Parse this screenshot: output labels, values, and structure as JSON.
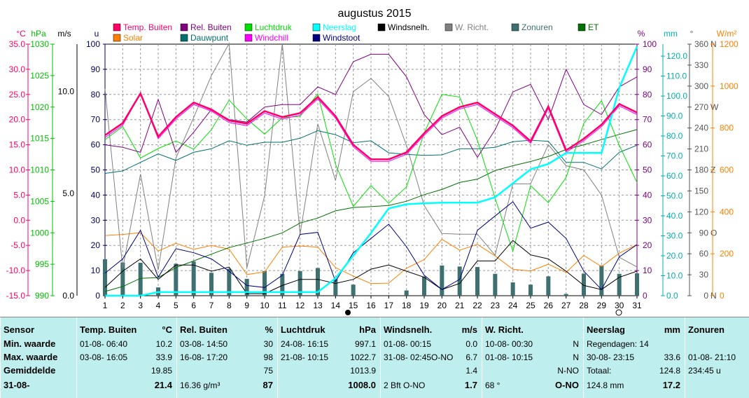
{
  "title": "augustus 2015",
  "units": {
    "celsius": "°C",
    "hpa": "hPa",
    "ms": "m/s",
    "uur": "u",
    "percent": "%",
    "mm": "mm",
    "deg": "°",
    "wm2": "W/m²"
  },
  "legend": [
    {
      "label": "Temp. Buiten",
      "color": "#ff0066"
    },
    {
      "label": "Rel. Buiten",
      "color": "#800080"
    },
    {
      "label": "Luchtdruk",
      "color": "#00e000"
    },
    {
      "label": "Neerslag",
      "color": "#00ffff"
    },
    {
      "label": "Windsnelh.",
      "color": "#000000"
    },
    {
      "label": "W. Richt.",
      "color": "#808080"
    },
    {
      "label": "Zonuren",
      "color": "#3f7070"
    },
    {
      "label": "ET",
      "color": "#007000"
    },
    {
      "label": "Solar",
      "color": "#ff8000"
    },
    {
      "label": "Dauwpunt",
      "color": "#007070"
    },
    {
      "label": "Windchill",
      "color": "#ff00ff"
    },
    {
      "label": "Windstoot",
      "color": "#000080"
    }
  ],
  "axis_labels": {
    "celsius": [
      "35.0",
      "30.0",
      "25.0",
      "20.0",
      "15.0",
      "10.0",
      "5.0",
      "0.0",
      "-5.0",
      "-10.0",
      "-15.0"
    ],
    "hpa": [
      "1030",
      "1025",
      "1020",
      "1015",
      "1010",
      "1005",
      "1000",
      "995",
      "990"
    ],
    "ms": [
      "10.0",
      "5.0",
      "0.0"
    ],
    "uur": [
      "100",
      "90",
      "80",
      "70",
      "60",
      "50",
      "40",
      "30",
      "20",
      "10",
      "0"
    ],
    "percent": [
      "100",
      "90",
      "80",
      "70",
      "60",
      "50",
      "40",
      "30",
      "20",
      "10",
      "0"
    ],
    "mm": [
      "120.0",
      "110.0",
      "100.0",
      "90.0",
      "80.0",
      "70.0",
      "60.0",
      "50.0",
      "40.0",
      "30.0",
      "20.0",
      "10.0",
      "0.0"
    ],
    "deg": [
      "360",
      "330",
      "300",
      "270",
      "240",
      "210",
      "180",
      "150",
      "120",
      "90",
      "60",
      "30",
      "0"
    ],
    "compass": [
      "N",
      "W",
      "Z",
      "O",
      "N"
    ],
    "wm2": [
      "1200",
      "1000",
      "800",
      "600",
      "400",
      "200",
      "0"
    ]
  },
  "chart_data": {
    "type": "line",
    "x": [
      1,
      2,
      3,
      4,
      5,
      6,
      7,
      8,
      9,
      10,
      11,
      12,
      13,
      14,
      15,
      16,
      17,
      18,
      19,
      20,
      21,
      22,
      23,
      24,
      25,
      26,
      27,
      28,
      29,
      30,
      31
    ],
    "series": [
      {
        "name": "Temp. Buiten",
        "axis": "celsius",
        "color": "#ff0066",
        "values": [
          16.9,
          19.3,
          25.2,
          16.6,
          20.5,
          23.4,
          22,
          19.8,
          19.2,
          21.7,
          20.5,
          21.3,
          24.5,
          20.7,
          15,
          12.1,
          12.1,
          13.5,
          17.3,
          20.7,
          22.5,
          23.4,
          21.1,
          18.8,
          15.7,
          22.6,
          13.9,
          16.2,
          19,
          23.1,
          21.4
        ]
      },
      {
        "name": "Rel. Buiten",
        "axis": "percent",
        "color": "#800080",
        "values": [
          60,
          59,
          57,
          78,
          57,
          65,
          74,
          70,
          69,
          75,
          76,
          76,
          83,
          80,
          93,
          96,
          96,
          87,
          72,
          64,
          67,
          55,
          66,
          81,
          84,
          70,
          90,
          76,
          72,
          83,
          87
        ]
      },
      {
        "name": "Luchtdruk",
        "axis": "hpa",
        "color": "#00e000",
        "values": [
          1014.8,
          1016.9,
          1011.9,
          1013.4,
          1014.6,
          1013.3,
          1016.4,
          1021.1,
          1018.1,
          1015.7,
          1018.3,
          1018.5,
          1022.1,
          1010.9,
          1004.2,
          1007.5,
          1004.7,
          1007.3,
          1015.9,
          1022,
          1021.6,
          1014.7,
          1005.5,
          997.1,
          1007.5,
          1004.8,
          1008.8,
          1017.4,
          1021,
          1013.9,
          1008
        ]
      },
      {
        "name": "Neerslag",
        "axis": "mm",
        "color": "#00ffff",
        "values": [
          0,
          0,
          0,
          1.8,
          1.8,
          1.8,
          1.8,
          1.8,
          1.8,
          1.8,
          1.8,
          1.8,
          1.8,
          8.7,
          20.1,
          31.4,
          43.7,
          45.8,
          46.3,
          46.6,
          46.6,
          46.6,
          49.3,
          56.3,
          63.3,
          66,
          71.5,
          71.5,
          71.5,
          104.2,
          124.8
        ]
      },
      {
        "name": "Windsnelh.",
        "axis": "ms",
        "color": "#000000",
        "values": [
          0.4,
          1.2,
          1.8,
          0.8,
          1.5,
          1.5,
          1.2,
          1.4,
          0.1,
          0.1,
          0.5,
          0.8,
          0.8,
          0.6,
          0.8,
          1.3,
          1.5,
          1.2,
          0.9,
          0.3,
          0.6,
          1.7,
          1.7,
          2.7,
          2,
          1.8,
          1.2,
          0.5,
          0.3,
          0.9,
          1.2
        ]
      },
      {
        "name": "W. Richt.",
        "axis": "deg",
        "color": "#808080",
        "values": [
          296,
          39,
          174,
          37,
          197,
          255,
          315,
          361,
          40,
          143,
          361,
          88,
          246,
          165,
          292,
          311,
          285,
          215,
          129,
          89,
          88,
          88,
          58,
          160,
          160,
          216,
          186,
          180,
          144,
          55,
          41
        ]
      },
      {
        "name": "Dauwpunt",
        "axis": "celsius",
        "color": "#007070",
        "values": [
          9.3,
          9.8,
          11.5,
          13.2,
          11.9,
          13.5,
          14.2,
          15.8,
          14.9,
          15.5,
          15.5,
          16.3,
          17.8,
          17,
          15.4,
          15.8,
          13.4,
          13.1,
          12.9,
          13,
          14.2,
          14.2,
          14.5,
          15.6,
          15.9,
          15.7,
          11.5,
          11.5,
          10.2,
          13.5,
          14.9
        ]
      },
      {
        "name": "Windchill",
        "axis": "celsius",
        "color": "#ff00ff",
        "values": [
          16.4,
          18.9,
          25.2,
          16.2,
          20.1,
          23,
          21.7,
          19.4,
          18.8,
          21.3,
          20.1,
          20.9,
          24.1,
          20.3,
          14.6,
          11.7,
          11.7,
          13.1,
          16.9,
          20.3,
          22.1,
          23,
          20.7,
          18.4,
          15.3,
          22.2,
          13.5,
          15.8,
          18.6,
          22.7,
          21
        ]
      },
      {
        "name": "Windstoot",
        "axis": "ms",
        "color": "#000080",
        "values": [
          1.1,
          1.8,
          3.2,
          0.9,
          2.3,
          2.1,
          1.8,
          1.2,
          0.5,
          0.4,
          1,
          3,
          3.1,
          0.7,
          2.1,
          2.8,
          3.5,
          2.4,
          1,
          0.3,
          0.8,
          3.2,
          3.9,
          4.6,
          3.3,
          3.6,
          2.8,
          1.2,
          0.3,
          1.9,
          2.5
        ]
      },
      {
        "name": "ET",
        "axis": "mm",
        "color": "#007000",
        "values": [
          2.1,
          4.6,
          8.7,
          9.1,
          14.1,
          17.4,
          20.8,
          24.1,
          26.4,
          28.7,
          31.5,
          36.4,
          38.9,
          42.5,
          44.2,
          44.6,
          45.2,
          47.3,
          50.6,
          53.2,
          56.7,
          58.4,
          62.7,
          65.1,
          67.2,
          69.7,
          73.2,
          75.6,
          78.2,
          80.8,
          83.2
        ]
      },
      {
        "name": "Solar",
        "axis": "wm2",
        "color": "#ff8000",
        "values": [
          287,
          292,
          301,
          213,
          250,
          221,
          240,
          222,
          101,
          113,
          232,
          237,
          232,
          134,
          94,
          58,
          60,
          131,
          172,
          269,
          217,
          245,
          190,
          126,
          118,
          150,
          111,
          192,
          139,
          203,
          244
        ]
      }
    ],
    "bars": {
      "name": "Zonuren",
      "axis": "uur",
      "color": "#3f7070",
      "values": [
        14.5,
        13.2,
        13.1,
        3.3,
        12.7,
        13.6,
        9.1,
        10.7,
        6.7,
        9.8,
        8.7,
        9.8,
        11,
        6.7,
        4.4,
        0,
        0,
        2.1,
        7.6,
        12,
        11.6,
        11.4,
        8.7,
        5.3,
        4.4,
        7.7,
        0.7,
        8.8,
        12,
        8.7,
        8.9
      ]
    },
    "xlim": [
      1,
      31
    ],
    "ylim_left": [
      -15,
      35
    ],
    "grid": true
  },
  "stats": {
    "sensor": {
      "header": "Sensor",
      "min": "Min. waarde",
      "max": "Max. waarde",
      "avg": "Gemiddelde",
      "last": "31-08-"
    },
    "temp": {
      "header": "Temp. Buiten",
      "unit": "°C",
      "min_time": "01-08- 06:40",
      "min": "10.2",
      "max_time": "03-08- 16:05",
      "max": "33.9",
      "avg": "19.85",
      "last": "21.4"
    },
    "rel": {
      "header": "Rel. Buiten",
      "unit": "%",
      "min_time": "03-08- 14:50",
      "min": "30",
      "max_time": "16-08- 17:20",
      "max": "98",
      "avg": "75",
      "last_extra": "16.36 g/m³",
      "last": "87"
    },
    "druk": {
      "header": "Luchtdruk",
      "unit": "hPa",
      "min_time": "24-08- 16:15",
      "min": "997.1",
      "max_time": "21-08- 10:15",
      "max": "1022.7",
      "avg": "1013.9",
      "last": "1008.0"
    },
    "wind": {
      "header": "Windsnelh.",
      "unit": "m/s",
      "min_time": "01-08- 00:15",
      "min": "0.0",
      "max_time": "31-08- 02:45O-NO",
      "max": "6.7",
      "avg": "1.4",
      "last_extra": "2 Bft O-NO",
      "last": "1.7"
    },
    "richt": {
      "header": "W. Richt.",
      "min_time": "10-08- 00:30",
      "min": "N",
      "max_time": "01-08- 10:15",
      "max": "N",
      "avg": "N-NO",
      "last_extra": "68 °",
      "last": "O-NO"
    },
    "neerslag": {
      "header": "Neerslag",
      "unit": "mm",
      "line1": "Regendagen: 14",
      "max_time": "30-08- 23:15",
      "max": "33.6",
      "total_label": "Totaal:",
      "total": "124.8",
      "last_extra": "124.8 mm",
      "last": "17.2"
    },
    "zonuren": {
      "header": "Zonuren",
      "line1": "01-08- 21:10",
      "line2": "234:45 u"
    }
  }
}
